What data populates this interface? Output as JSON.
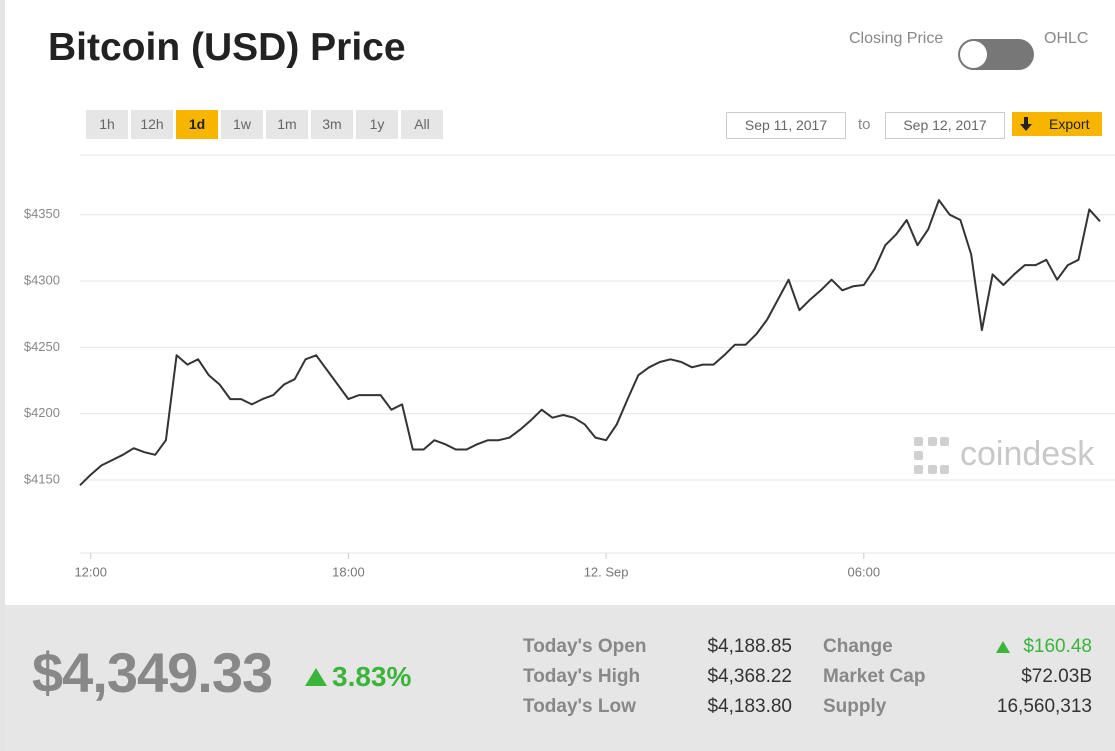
{
  "header": {
    "title": "Bitcoin (USD) Price",
    "toggle_left": "Closing Price",
    "toggle_right": "OHLC"
  },
  "ranges": {
    "buttons": [
      "1h",
      "12h",
      "1d",
      "1w",
      "1m",
      "3m",
      "1y",
      "All"
    ],
    "active": "1d"
  },
  "dates": {
    "from": "Sep 11, 2017",
    "separator": "to",
    "to": "Sep 12, 2017",
    "export": "Export"
  },
  "chart_data": {
    "type": "line",
    "color": "#333333",
    "watermark": "coindesk",
    "categories": [
      null,
      "12:00",
      null,
      null,
      null,
      null,
      null,
      null,
      null,
      null,
      null,
      null,
      null,
      null,
      null,
      null,
      null,
      null,
      null,
      null,
      null,
      null,
      null,
      null,
      null,
      "18:00",
      null,
      null,
      null,
      null,
      null,
      null,
      null,
      null,
      null,
      null,
      null,
      null,
      null,
      null,
      null,
      null,
      null,
      null,
      null,
      null,
      null,
      null,
      null,
      "12. Sep",
      null,
      null,
      null,
      null,
      null,
      null,
      null,
      null,
      null,
      null,
      null,
      null,
      null,
      null,
      null,
      null,
      null,
      null,
      null,
      null,
      null,
      null,
      null,
      "06:00",
      null,
      null,
      null,
      null,
      null,
      null,
      null,
      null,
      null,
      null,
      null,
      null,
      null,
      null,
      null,
      null,
      null,
      null,
      null,
      null,
      null,
      null
    ],
    "values": [
      4146,
      4154,
      4161,
      4165,
      4169,
      4174,
      4171,
      4169,
      4180,
      4244,
      4237,
      4241,
      4229,
      4222,
      4211,
      4211,
      4207,
      4211,
      4214,
      4222,
      4226,
      4241,
      4244,
      4233,
      4222,
      4211,
      4214,
      4214,
      4214,
      4203,
      4207,
      4173,
      4173,
      4180,
      4177,
      4173,
      4173,
      4177,
      4180,
      4180,
      4182,
      4188,
      4195,
      4203,
      4197,
      4199,
      4197,
      4192,
      4182,
      4180,
      4192,
      4211,
      4229,
      4235,
      4239,
      4241,
      4239,
      4235,
      4237,
      4237,
      4244,
      4252,
      4252,
      4260,
      4271,
      4286,
      4301,
      4278,
      4286,
      4293,
      4301,
      4293,
      4296,
      4297,
      4309,
      4327,
      4335,
      4346,
      4327,
      4339,
      4361,
      4350,
      4346,
      4320,
      4263,
      4305,
      4297,
      4305,
      4312,
      4312,
      4316,
      4301,
      4312,
      4316,
      4354,
      4345
    ],
    "ylim": [
      4095,
      4395
    ],
    "yticks": [
      {
        "value": 4150,
        "label": "$4150"
      },
      {
        "value": 4200,
        "label": "$4200"
      },
      {
        "value": 4250,
        "label": "$4250"
      },
      {
        "value": 4300,
        "label": "$4300"
      },
      {
        "value": 4350,
        "label": "$4350"
      }
    ],
    "grid": true
  },
  "summary": {
    "price": "$4,349.33",
    "change_pct": "3.83%",
    "rows": [
      [
        "Today's Open",
        "$4,188.85",
        "Change",
        "$160.48"
      ],
      [
        "Today's High",
        "$4,368.22",
        "Market Cap",
        "$72.03B"
      ],
      [
        "Today's Low",
        "$4,183.80",
        "Supply",
        "16,560,313"
      ]
    ]
  }
}
